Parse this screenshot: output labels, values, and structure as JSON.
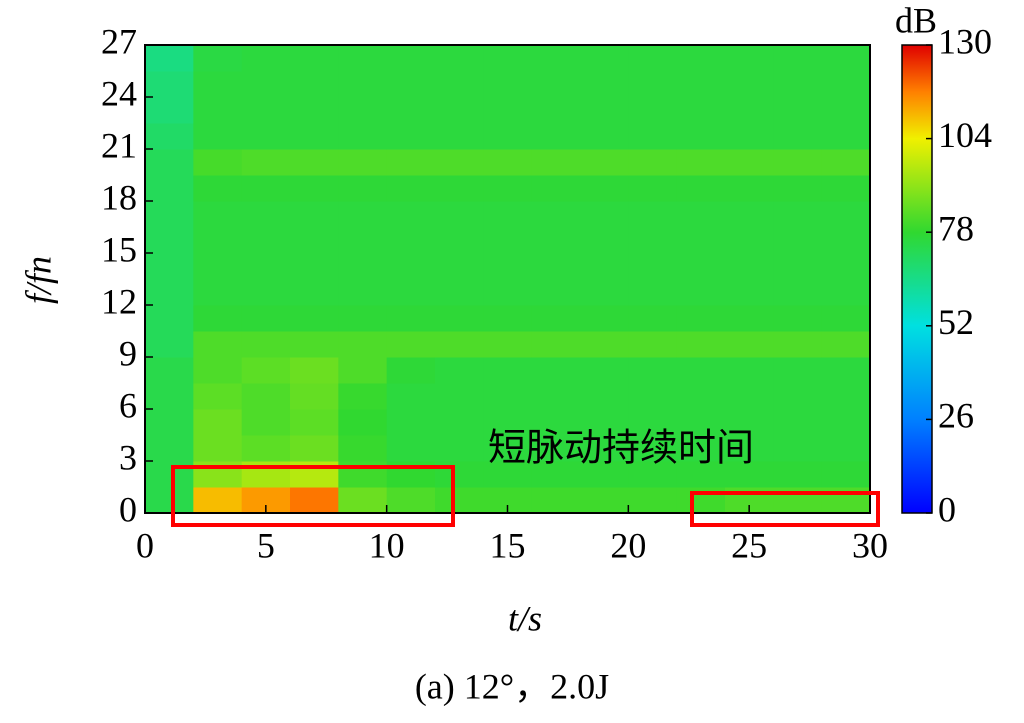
{
  "chart_data": {
    "type": "heatmap",
    "xlabel": "t/s",
    "ylabel": "f/fn",
    "colorbar_label": "dB",
    "annotation": "短脉动持续时间",
    "caption": "(a) 12°，2.0J",
    "xbins": [
      0,
      2,
      4,
      6,
      8,
      10,
      12,
      14,
      16,
      18,
      20,
      22,
      24,
      26,
      28,
      30
    ],
    "ybins": [
      0,
      1.5,
      3,
      4.5,
      6,
      7.5,
      9,
      10.5,
      12,
      13.5,
      15,
      16.5,
      18,
      19.5,
      21,
      22.5,
      24,
      25.5,
      27
    ],
    "z": [
      [
        74,
        110,
        114,
        118,
        86,
        82,
        80,
        80,
        80,
        80,
        80,
        80,
        82,
        82,
        82
      ],
      [
        74,
        90,
        94,
        96,
        80,
        78,
        77,
        77,
        77,
        77,
        77,
        77,
        77,
        77,
        77
      ],
      [
        74,
        86,
        84,
        86,
        79,
        76,
        76,
        76,
        76,
        76,
        76,
        76,
        76,
        76,
        76
      ],
      [
        74,
        86,
        82,
        84,
        78,
        76,
        76,
        76,
        76,
        76,
        76,
        76,
        76,
        76,
        76
      ],
      [
        74,
        84,
        82,
        85,
        79,
        76,
        76,
        76,
        76,
        76,
        76,
        76,
        76,
        76,
        76
      ],
      [
        74,
        82,
        84,
        86,
        82,
        77,
        76,
        76,
        76,
        76,
        76,
        76,
        76,
        76,
        76
      ],
      [
        72,
        82,
        82,
        82,
        82,
        82,
        82,
        82,
        82,
        82,
        82,
        82,
        82,
        82,
        82
      ],
      [
        72,
        77,
        77,
        77,
        77,
        77,
        77,
        77,
        77,
        77,
        77,
        77,
        77,
        77,
        77
      ],
      [
        72,
        76,
        76,
        76,
        76,
        76,
        76,
        76,
        76,
        76,
        76,
        76,
        76,
        76,
        76
      ],
      [
        72,
        76,
        76,
        76,
        76,
        76,
        76,
        76,
        76,
        76,
        76,
        76,
        76,
        76,
        76
      ],
      [
        72,
        76,
        76,
        76,
        76,
        76,
        76,
        76,
        76,
        76,
        76,
        76,
        76,
        76,
        76
      ],
      [
        72,
        76,
        76,
        76,
        76,
        76,
        76,
        76,
        76,
        76,
        76,
        76,
        76,
        76,
        76
      ],
      [
        72,
        77,
        77,
        77,
        77,
        77,
        77,
        77,
        77,
        77,
        77,
        77,
        77,
        77,
        77
      ],
      [
        72,
        81,
        82,
        82,
        82,
        82,
        82,
        82,
        82,
        82,
        82,
        82,
        82,
        82,
        82
      ],
      [
        70,
        76,
        76,
        76,
        76,
        76,
        76,
        76,
        76,
        76,
        76,
        76,
        76,
        76,
        76
      ],
      [
        68,
        76,
        76,
        76,
        76,
        76,
        76,
        76,
        76,
        76,
        76,
        76,
        76,
        76,
        76
      ],
      [
        68,
        76,
        76,
        76,
        76,
        76,
        76,
        76,
        76,
        76,
        76,
        76,
        76,
        76,
        76
      ],
      [
        66,
        75,
        76,
        76,
        76,
        76,
        76,
        76,
        76,
        76,
        76,
        76,
        76,
        76,
        76
      ]
    ],
    "xlim": [
      0,
      30
    ],
    "xticks": [
      0,
      5,
      10,
      15,
      20,
      25,
      30
    ],
    "ylim": [
      0,
      27
    ],
    "yticks": [
      0,
      3,
      6,
      9,
      12,
      15,
      18,
      21,
      24,
      27
    ],
    "zlim": [
      0,
      130
    ],
    "zticks": [
      0,
      26,
      52,
      78,
      104,
      130
    ],
    "colormap": [
      [
        0,
        "#0000ff"
      ],
      [
        0.2,
        "#0080ff"
      ],
      [
        0.4,
        "#00e0e0"
      ],
      [
        0.6,
        "#30d830"
      ],
      [
        0.8,
        "#f0f000"
      ],
      [
        0.9,
        "#ff8000"
      ],
      [
        1,
        "#e00000"
      ]
    ]
  }
}
